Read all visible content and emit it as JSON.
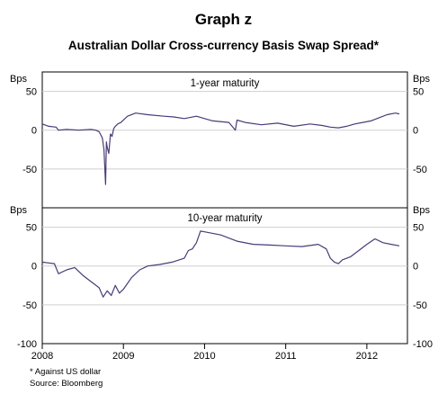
{
  "chart_data": {
    "type": "line",
    "title": "Graph z",
    "subtitle": "Australian Dollar Cross-currency Basis Swap Spread*",
    "unit": "Bps",
    "x_tick_labels": [
      "2008",
      "2009",
      "2010",
      "2011",
      "2012"
    ],
    "xlim": [
      2008.0,
      2012.5
    ],
    "footnotes": [
      "* Against US dollar",
      "Source: Bloomberg"
    ],
    "line_color": "#4a3a78",
    "panels": [
      {
        "label": "1-year maturity",
        "ylim": [
          -100,
          75
        ],
        "y_ticks": [
          50,
          0,
          -50
        ],
        "x": [
          2008.0,
          2008.08,
          2008.17,
          2008.2,
          2008.3,
          2008.45,
          2008.6,
          2008.66,
          2008.7,
          2008.74,
          2008.76,
          2008.78,
          2008.79,
          2008.8,
          2008.82,
          2008.84,
          2008.86,
          2008.88,
          2008.9,
          2008.93,
          2008.97,
          2009.05,
          2009.15,
          2009.3,
          2009.5,
          2009.62,
          2009.75,
          2009.9,
          2010.1,
          2010.3,
          2010.38,
          2010.4,
          2010.5,
          2010.7,
          2010.9,
          2011.1,
          2011.3,
          2011.45,
          2011.55,
          2011.65,
          2011.75,
          2011.85,
          2011.95,
          2012.05,
          2012.15,
          2012.25,
          2012.35,
          2012.4
        ],
        "y": [
          8,
          5,
          4,
          0,
          1,
          0,
          1,
          0,
          -2,
          -10,
          -25,
          -70,
          -15,
          -22,
          -30,
          -5,
          -8,
          2,
          5,
          8,
          10,
          18,
          22,
          20,
          18,
          17,
          15,
          18,
          12,
          10,
          0,
          13,
          10,
          7,
          9,
          5,
          8,
          6,
          4,
          3,
          5,
          8,
          10,
          12,
          16,
          20,
          22,
          21
        ]
      },
      {
        "label": "10-year maturity",
        "ylim": [
          -100,
          75
        ],
        "y_ticks": [
          50,
          0,
          -50,
          -100
        ],
        "x": [
          2008.0,
          2008.08,
          2008.15,
          2008.2,
          2008.3,
          2008.4,
          2008.5,
          2008.6,
          2008.7,
          2008.75,
          2008.8,
          2008.85,
          2008.9,
          2008.95,
          2009.0,
          2009.1,
          2009.2,
          2009.3,
          2009.45,
          2009.6,
          2009.75,
          2009.8,
          2009.85,
          2009.9,
          2009.95,
          2010.0,
          2010.2,
          2010.4,
          2010.6,
          2010.8,
          2011.0,
          2011.2,
          2011.4,
          2011.5,
          2011.55,
          2011.6,
          2011.65,
          2011.7,
          2011.8,
          2011.9,
          2012.0,
          2012.1,
          2012.2,
          2012.3,
          2012.4
        ],
        "y": [
          5,
          4,
          3,
          -10,
          -5,
          -2,
          -12,
          -20,
          -28,
          -40,
          -32,
          -38,
          -25,
          -35,
          -30,
          -15,
          -5,
          0,
          2,
          5,
          10,
          20,
          22,
          30,
          45,
          44,
          40,
          32,
          28,
          27,
          26,
          25,
          28,
          22,
          10,
          5,
          3,
          8,
          12,
          20,
          28,
          35,
          30,
          28,
          26
        ]
      }
    ]
  }
}
